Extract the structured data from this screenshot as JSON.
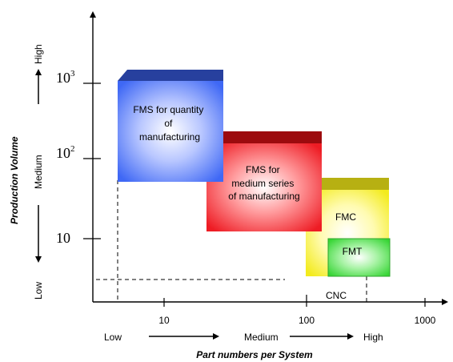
{
  "y_axis": {
    "title": "Production Volume",
    "levels": {
      "high": "High",
      "medium": "Medium",
      "low": "Low"
    },
    "ticks": {
      "t1000_base": "10",
      "t1000_exp": "3",
      "t100_base": "10",
      "t100_exp": "2",
      "t10": "10"
    }
  },
  "x_axis": {
    "title": "Part numbers per System",
    "levels": {
      "low": "Low",
      "medium": "Medium",
      "high": "High"
    },
    "ticks": {
      "t10": "10",
      "t100": "100",
      "t1000": "1000"
    }
  },
  "boxes": {
    "fms_quantity": {
      "line1": "FMS for quantity",
      "line2": "of",
      "line3": "manufacturing",
      "color": "#3f68f5"
    },
    "fms_medium": {
      "line1": "FMS for",
      "line2": "medium series",
      "line3": "of manufacturing",
      "color": "#ee1c24"
    },
    "fmc": {
      "label": "FMC",
      "color": "#f6ef22"
    },
    "fmt": {
      "label": "FMT",
      "color": "#4ce24a"
    }
  },
  "cnc_label": "CNC"
}
